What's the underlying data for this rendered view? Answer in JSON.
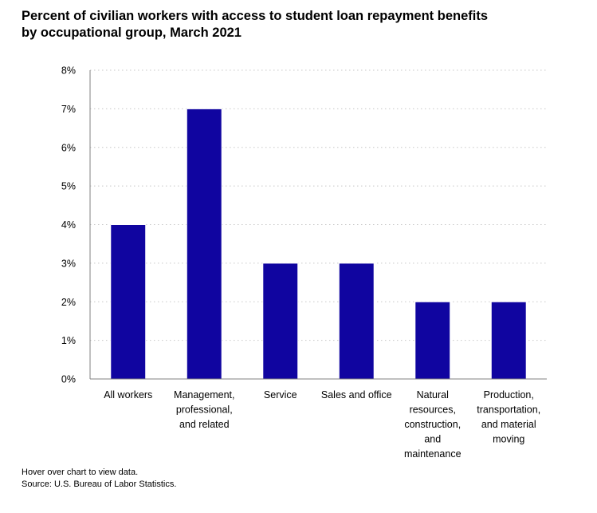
{
  "header": {
    "title_line1": "Percent of civilian workers with access to student loan repayment benefits",
    "title_line2": "by occupational group, March 2021"
  },
  "footer": {
    "hover_note": "Hover over chart to view data.",
    "source": "Source: U.S. Bureau of Labor Statistics."
  },
  "colors": {
    "bar": "#1005a0",
    "grid": "#c8c8c8",
    "axis": "#808080"
  },
  "chart_data": {
    "type": "bar",
    "title": "Percent of civilian workers with access to student loan repayment benefits by occupational group, March 2021",
    "xlabel": "",
    "ylabel": "",
    "ylim": [
      0,
      8
    ],
    "yticks": [
      "0%",
      "1%",
      "2%",
      "3%",
      "4%",
      "5%",
      "6%",
      "7%",
      "8%"
    ],
    "grid": true,
    "categories": [
      [
        "All workers"
      ],
      [
        "Management,",
        "professional,",
        "and related"
      ],
      [
        "Service"
      ],
      [
        "Sales and office"
      ],
      [
        "Natural",
        "resources,",
        "construction,",
        "and",
        "maintenance"
      ],
      [
        "Production,",
        "transportation,",
        "and material",
        "moving"
      ]
    ],
    "values": [
      4,
      7,
      3,
      3,
      2,
      2
    ]
  }
}
